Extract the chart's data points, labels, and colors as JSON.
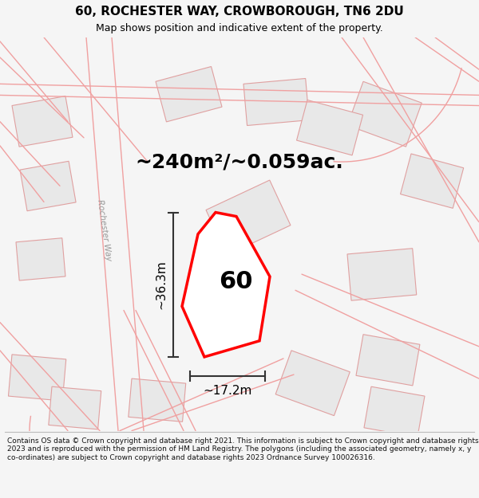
{
  "title": "60, ROCHESTER WAY, CROWBOROUGH, TN6 2DU",
  "subtitle": "Map shows position and indicative extent of the property.",
  "footer": "Contains OS data © Crown copyright and database right 2021. This information is subject to Crown copyright and database rights 2023 and is reproduced with the permission of HM Land Registry. The polygons (including the associated geometry, namely x, y co-ordinates) are subject to Crown copyright and database rights 2023 Ordnance Survey 100026316.",
  "area_text": "~240m²/~0.059ac.",
  "width_label": "~17.2m",
  "height_label": "~36.3m",
  "number_label": "60",
  "bg_color": "#f5f5f5",
  "map_bg": "#ffffff",
  "plot_color": "#ff0000",
  "road_color": "#f0a0a0",
  "building_color": "#e8e8e8",
  "building_edge": "#e0a0a0",
  "dim_color": "#333333",
  "title_fontsize": 11,
  "subtitle_fontsize": 9,
  "footer_fontsize": 6.5,
  "area_fontsize": 18,
  "number_fontsize": 22
}
